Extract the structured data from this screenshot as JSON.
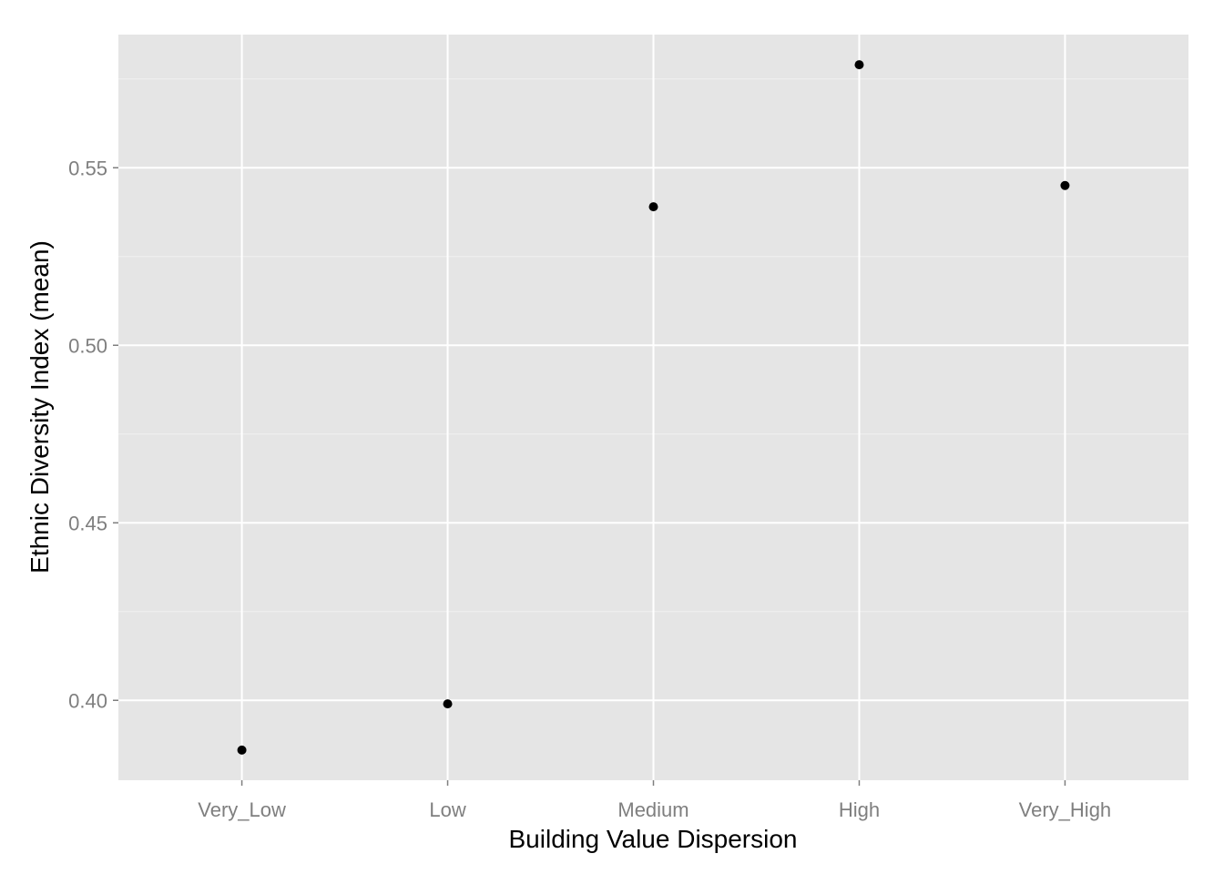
{
  "chart_data": {
    "type": "scatter",
    "title": "",
    "xlabel": "Building Value Dispersion",
    "ylabel": "Ethnic Diversity Index (mean)",
    "categories": [
      "Very_Low",
      "Low",
      "Medium",
      "High",
      "Very_High"
    ],
    "values": [
      0.386,
      0.399,
      0.539,
      0.579,
      0.545
    ],
    "yticks": [
      {
        "value": 0.4,
        "label": "0.40"
      },
      {
        "value": 0.45,
        "label": "0.45"
      },
      {
        "value": 0.5,
        "label": "0.50"
      },
      {
        "value": 0.55,
        "label": "0.55"
      }
    ],
    "ylim": [
      0.3775,
      0.5875
    ],
    "grid": true,
    "legend": "none",
    "colors": {
      "panel": "#e5e5e5",
      "grid_major": "#ffffff",
      "grid_minor": "#f2f2f2",
      "point": "#000000",
      "tick_text": "#7f7f7f",
      "tick_mark": "#7f7f7f",
      "title_text": "#000000"
    }
  }
}
